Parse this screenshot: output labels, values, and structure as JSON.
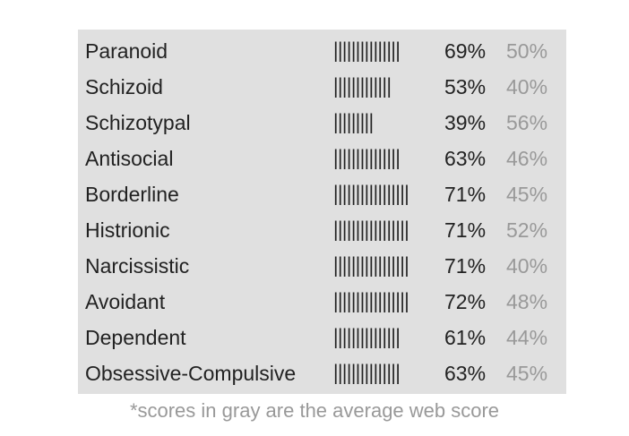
{
  "table": {
    "rows": [
      [
        "Paranoid",
        "|||||||||||||||",
        "69%",
        "50%"
      ],
      [
        "Schizoid",
        "|||||||||||||",
        "53%",
        "40%"
      ],
      [
        "Schizotypal",
        "|||||||||",
        "39%",
        "56%"
      ],
      [
        "Antisocial",
        "|||||||||||||||",
        "63%",
        "46%"
      ],
      [
        "Borderline",
        "|||||||||||||||||",
        "71%",
        "45%"
      ],
      [
        "Histrionic",
        "|||||||||||||||||",
        "71%",
        "52%"
      ],
      [
        "Narcissistic",
        "|||||||||||||||||",
        "71%",
        "40%"
      ],
      [
        "Avoidant",
        "|||||||||||||||||",
        "72%",
        "48%"
      ],
      [
        "Dependent",
        "|||||||||||||||",
        "61%",
        "44%"
      ],
      [
        "Obsessive-Compulsive",
        "|||||||||||||||",
        "63%",
        "45%"
      ]
    ]
  },
  "footnote": "*scores in gray are the average web score"
}
